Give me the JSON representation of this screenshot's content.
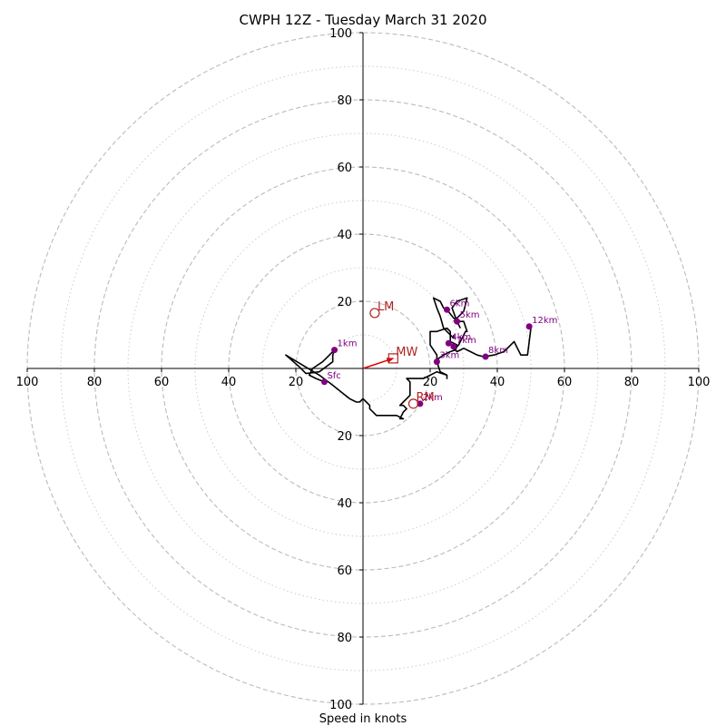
{
  "chart_data": {
    "type": "scatter",
    "title": "CWPH 12Z - Tuesday March 31 2020",
    "xlabel": "Speed in knots",
    "ylabel": "",
    "xlim": [
      -100,
      100
    ],
    "ylim": [
      -100,
      100
    ],
    "grid": true,
    "colors": {
      "hodograph": "#000000",
      "height_marker": "#800080",
      "storm_motion": "#b22222",
      "mean_wind_arrow": "#dd0000",
      "ring_major": "#bbbbbb",
      "ring_minor": "#cccccc"
    },
    "rings_major": [
      20,
      40,
      60,
      80,
      100
    ],
    "rings_minor": [
      10,
      30,
      50,
      70,
      90
    ],
    "ticks": {
      "left": [
        "100",
        "80",
        "60",
        "40",
        "20"
      ],
      "right": [
        "20",
        "40",
        "60",
        "80",
        "100"
      ],
      "up": [
        "20",
        "40",
        "60",
        "80",
        "100"
      ],
      "down": [
        "20",
        "40",
        "60",
        "80",
        "100"
      ]
    },
    "hodograph": [
      [
        -11.5,
        -4
      ],
      [
        -14,
        -3
      ],
      [
        -16,
        -2
      ],
      [
        -15,
        0
      ],
      [
        -12,
        2
      ],
      [
        -10,
        4
      ],
      [
        -8.5,
        5.5
      ],
      [
        -9,
        4
      ],
      [
        -9,
        2
      ],
      [
        -13,
        -1
      ],
      [
        -17,
        -1.5
      ],
      [
        -19,
        0.5
      ],
      [
        -23,
        4
      ],
      [
        -18,
        1
      ],
      [
        -13,
        -2
      ],
      [
        -9,
        -5
      ],
      [
        -4,
        -9
      ],
      [
        -2,
        -10
      ],
      [
        -1,
        -10
      ],
      [
        0,
        -9
      ],
      [
        1,
        -10
      ],
      [
        2,
        -11
      ],
      [
        2,
        -12
      ],
      [
        3,
        -13
      ],
      [
        4,
        -14
      ],
      [
        5,
        -14
      ],
      [
        6,
        -14
      ],
      [
        8,
        -14
      ],
      [
        10,
        -14
      ],
      [
        12,
        -15
      ],
      [
        11,
        -15
      ],
      [
        12,
        -13
      ],
      [
        13,
        -12
      ],
      [
        12,
        -11
      ],
      [
        11,
        -11
      ],
      [
        12,
        -10
      ],
      [
        13,
        -9
      ],
      [
        14,
        -8
      ],
      [
        14,
        -4
      ],
      [
        13,
        -3
      ],
      [
        18,
        -3
      ],
      [
        22,
        -1
      ],
      [
        25,
        -2
      ],
      [
        25,
        -3
      ],
      [
        25,
        -2
      ],
      [
        23,
        -1
      ],
      [
        22,
        2
      ],
      [
        22,
        3
      ],
      [
        22,
        4
      ],
      [
        20,
        7
      ],
      [
        20,
        8
      ],
      [
        20,
        9
      ],
      [
        20,
        11
      ],
      [
        22,
        11
      ],
      [
        25,
        12
      ],
      [
        26,
        11
      ],
      [
        26,
        8
      ],
      [
        28,
        7
      ],
      [
        27,
        6
      ],
      [
        28,
        5
      ],
      [
        30,
        6
      ],
      [
        32,
        5
      ],
      [
        34,
        4
      ],
      [
        36,
        3.5
      ],
      [
        39,
        4
      ],
      [
        42,
        5
      ],
      [
        45,
        8
      ],
      [
        47,
        4
      ],
      [
        49,
        4
      ],
      [
        50,
        12
      ],
      [
        49.5,
        12.5
      ],
      [
        49.5,
        12
      ],
      [
        50,
        12.5
      ],
      [
        49,
        12.5
      ]
    ],
    "hodograph_b": [
      [
        22,
        2
      ],
      [
        22.5,
        3
      ],
      [
        24,
        4
      ],
      [
        26,
        5
      ],
      [
        27.5,
        5.5
      ],
      [
        28,
        6.5
      ],
      [
        28.5,
        7
      ],
      [
        29,
        8
      ],
      [
        30.5,
        11
      ],
      [
        31,
        11
      ],
      [
        30,
        14
      ],
      [
        28.5,
        14
      ],
      [
        27,
        15
      ],
      [
        25,
        17.5
      ],
      [
        24,
        18
      ],
      [
        23,
        20
      ],
      [
        21,
        21
      ],
      [
        22,
        18
      ],
      [
        23,
        15.5
      ],
      [
        24,
        12
      ],
      [
        25,
        11
      ],
      [
        27,
        9
      ],
      [
        27,
        10
      ]
    ],
    "hodograph_c": [
      [
        27,
        14
      ],
      [
        29,
        16
      ],
      [
        30,
        17
      ],
      [
        31,
        21
      ],
      [
        28,
        20
      ],
      [
        26.5,
        18
      ],
      [
        28,
        14
      ],
      [
        29,
        12
      ]
    ],
    "height_markers": [
      {
        "label": "Sfc",
        "u": -11.5,
        "v": -4
      },
      {
        "label": "1km",
        "u": -8.5,
        "v": 5.5
      },
      {
        "label": "2km",
        "u": 17,
        "v": -10.5
      },
      {
        "label": "3km",
        "u": 22,
        "v": 2
      },
      {
        "label": "4km",
        "u": 25.5,
        "v": 7.5
      },
      {
        "label": "5km",
        "u": 28,
        "v": 14
      },
      {
        "label": "6km",
        "u": 25,
        "v": 17.5
      },
      {
        "label": "7km",
        "u": 27,
        "v": 6.5
      },
      {
        "label": "8km",
        "u": 36.5,
        "v": 3.5
      },
      {
        "label": "12km",
        "u": 49.5,
        "v": 12.5
      }
    ],
    "storm_motion": {
      "LM": {
        "label": "LM",
        "u": 3.5,
        "v": 16.5
      },
      "RM": {
        "label": "RM",
        "u": 15,
        "v": -10.5
      },
      "MW": {
        "label": "MW",
        "u": 9,
        "v": 3
      }
    }
  }
}
